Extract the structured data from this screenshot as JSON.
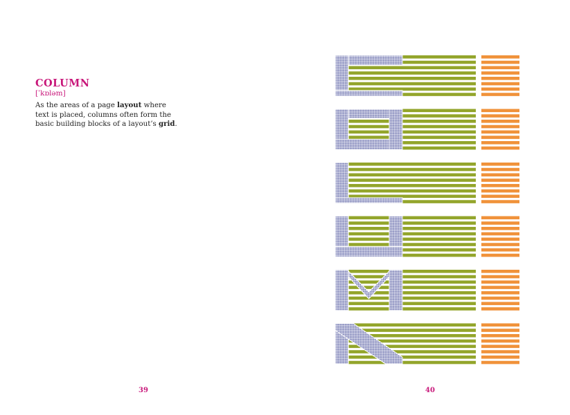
{
  "entry": {
    "term": "COLUMN",
    "pronunciation": "[ˈkɒləm]",
    "definition": [
      {
        "text": "As the areas of a page ",
        "bold": false
      },
      {
        "text": "layout",
        "bold": true
      },
      {
        "text": " where text is placed, columns often form the basic building blocks of a layout’s ",
        "bold": false
      },
      {
        "text": "grid",
        "bold": true
      },
      {
        "text": ".",
        "bold": false
      }
    ]
  },
  "folios": {
    "left": "39",
    "right": "40"
  },
  "illustration": {
    "letters": [
      "C",
      "O",
      "L",
      "U",
      "M",
      "N"
    ],
    "colors": {
      "dot_pattern": "#5d63a6",
      "green": "#93a52b",
      "orange": "#f0923a"
    }
  }
}
